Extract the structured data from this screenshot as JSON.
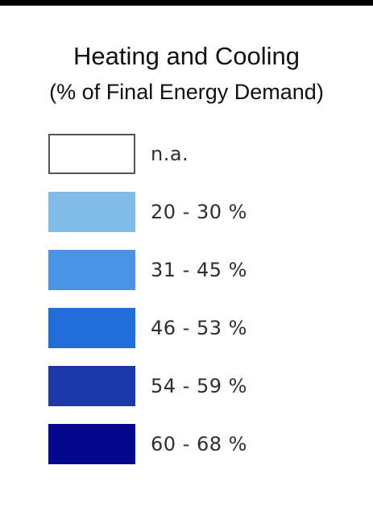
{
  "title": {
    "main": "Heating and Cooling",
    "sub": "(% of Final Energy Demand)"
  },
  "legend": {
    "items": [
      {
        "label": "n.a.",
        "color": "#ffffff"
      },
      {
        "label": "20 - 30 %",
        "color": "#7fbce8"
      },
      {
        "label": "31 - 45 %",
        "color": "#4a94e3"
      },
      {
        "label": "46 - 53 %",
        "color": "#1f6ed8"
      },
      {
        "label": "54 - 59 %",
        "color": "#1c39ab"
      },
      {
        "label": "60 - 68 %",
        "color": "#06098e"
      }
    ]
  }
}
